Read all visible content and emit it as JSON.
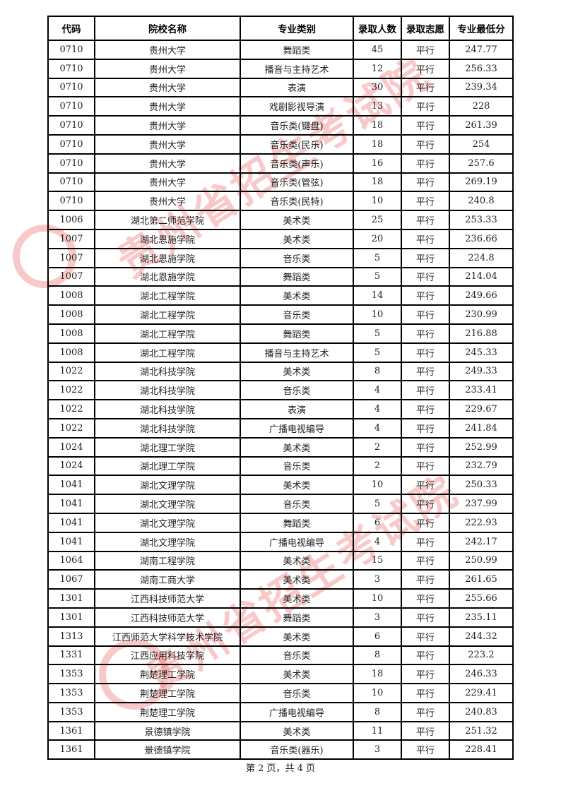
{
  "headers": [
    "代码",
    "院校名称",
    "专业类别",
    "录取人数",
    "录取志愿",
    "专业最低分"
  ],
  "rows": [
    [
      "0710",
      "贵州大学",
      "舞蹈类",
      "45",
      "平行",
      "247.77"
    ],
    [
      "0710",
      "贵州大学",
      "播音与主持艺术",
      "12",
      "平行",
      "256.33"
    ],
    [
      "0710",
      "贵州大学",
      "表演",
      "30",
      "平行",
      "239.34"
    ],
    [
      "0710",
      "贵州大学",
      "戏剧影视导演",
      "13",
      "平行",
      "228"
    ],
    [
      "0710",
      "贵州大学",
      "音乐类(键盘)",
      "18",
      "平行",
      "261.39"
    ],
    [
      "0710",
      "贵州大学",
      "音乐类(民乐)",
      "18",
      "平行",
      "254"
    ],
    [
      "0710",
      "贵州大学",
      "音乐类(声乐)",
      "16",
      "平行",
      "257.6"
    ],
    [
      "0710",
      "贵州大学",
      "音乐类(管弦)",
      "18",
      "平行",
      "269.19"
    ],
    [
      "0710",
      "贵州大学",
      "音乐类(民特)",
      "10",
      "平行",
      "240.8"
    ],
    [
      "1006",
      "湖北第二师范学院",
      "美术类",
      "25",
      "平行",
      "253.33"
    ],
    [
      "1007",
      "湖北恩施学院",
      "美术类",
      "20",
      "平行",
      "236.66"
    ],
    [
      "1007",
      "湖北恩施学院",
      "音乐类",
      "5",
      "平行",
      "224.8"
    ],
    [
      "1007",
      "湖北恩施学院",
      "舞蹈类",
      "5",
      "平行",
      "214.04"
    ],
    [
      "1008",
      "湖北工程学院",
      "美术类",
      "14",
      "平行",
      "249.66"
    ],
    [
      "1008",
      "湖北工程学院",
      "音乐类",
      "10",
      "平行",
      "230.99"
    ],
    [
      "1008",
      "湖北工程学院",
      "舞蹈类",
      "5",
      "平行",
      "216.88"
    ],
    [
      "1008",
      "湖北工程学院",
      "播音与主持艺术",
      "5",
      "平行",
      "245.33"
    ],
    [
      "1022",
      "湖北科技学院",
      "美术类",
      "8",
      "平行",
      "249.33"
    ],
    [
      "1022",
      "湖北科技学院",
      "音乐类",
      "4",
      "平行",
      "233.41"
    ],
    [
      "1022",
      "湖北科技学院",
      "表演",
      "4",
      "平行",
      "229.67"
    ],
    [
      "1022",
      "湖北科技学院",
      "广播电视编导",
      "4",
      "平行",
      "241.84"
    ],
    [
      "1024",
      "湖北理工学院",
      "美术类",
      "2",
      "平行",
      "252.99"
    ],
    [
      "1024",
      "湖北理工学院",
      "音乐类",
      "2",
      "平行",
      "232.79"
    ],
    [
      "1041",
      "湖北文理学院",
      "美术类",
      "10",
      "平行",
      "250.33"
    ],
    [
      "1041",
      "湖北文理学院",
      "音乐类",
      "5",
      "平行",
      "237.99"
    ],
    [
      "1041",
      "湖北文理学院",
      "舞蹈类",
      "6",
      "平行",
      "222.93"
    ],
    [
      "1041",
      "湖北文理学院",
      "广播电视编导",
      "4",
      "平行",
      "242.17"
    ],
    [
      "1064",
      "湖南工程学院",
      "美术类",
      "15",
      "平行",
      "250.99"
    ],
    [
      "1067",
      "湖南工商大学",
      "美术类",
      "3",
      "平行",
      "261.65"
    ],
    [
      "1301",
      "江西科技师范大学",
      "美术类",
      "10",
      "平行",
      "255.66"
    ],
    [
      "1301",
      "江西科技师范大学",
      "舞蹈类",
      "3",
      "平行",
      "235.11"
    ],
    [
      "1313",
      "江西师范大学科学技术学院",
      "美术类",
      "6",
      "平行",
      "244.32"
    ],
    [
      "1331",
      "江西应用科技学院",
      "音乐类",
      "8",
      "平行",
      "223.2"
    ],
    [
      "1353",
      "荆楚理工学院",
      "美术类",
      "18",
      "平行",
      "246.33"
    ],
    [
      "1353",
      "荆楚理工学院",
      "音乐类",
      "10",
      "平行",
      "229.41"
    ],
    [
      "1353",
      "荆楚理工学院",
      "广播电视编导",
      "8",
      "平行",
      "240.83"
    ],
    [
      "1361",
      "景德镇学院",
      "美术类",
      "11",
      "平行",
      "251.32"
    ],
    [
      "1361",
      "景德镇学院",
      "音乐类(器乐)",
      "3",
      "平行",
      "228.41"
    ]
  ],
  "footer": "第 2 页，共 4 页",
  "watermark": {
    "text": "贵州省招生考试院",
    "color": "#eb3c3c"
  }
}
